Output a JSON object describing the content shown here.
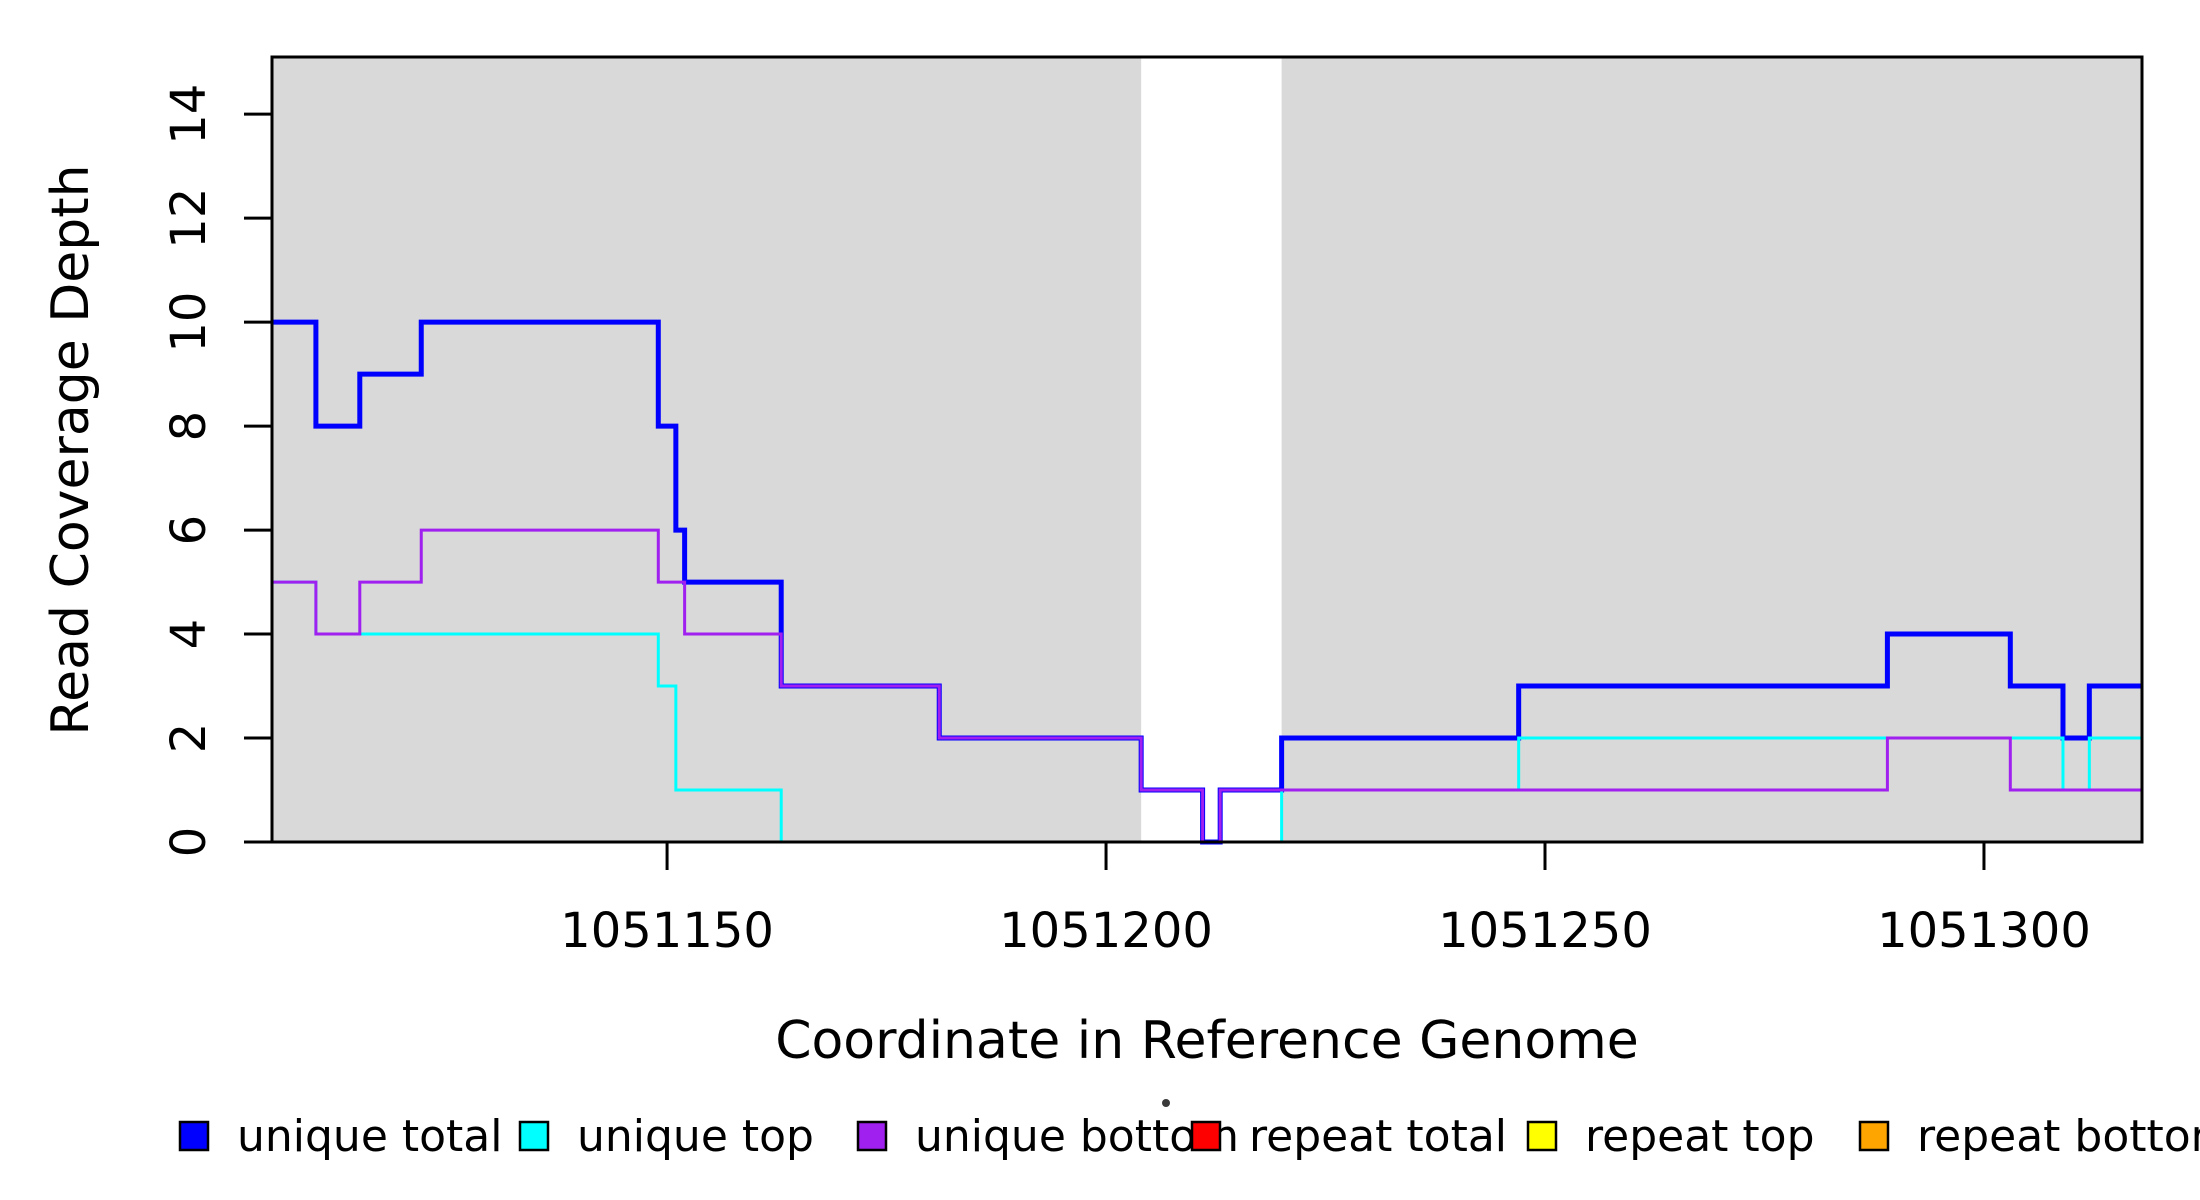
{
  "figure": {
    "background_color": "#ffffff",
    "plot_background_unique_color": "#d9d9d9",
    "box_color": "#000000"
  },
  "axes": {
    "x_title": "Coordinate in Reference Genome",
    "y_title": "Read Coverage Depth"
  },
  "chart_data": {
    "type": "line",
    "subtype": "step-after",
    "title": "",
    "xlabel": "Coordinate in Reference Genome",
    "ylabel": "Read Coverage Depth",
    "xlim": [
      1051105,
      1051318
    ],
    "ylim": [
      0,
      15.1
    ],
    "x_ticks": [
      1051150,
      1051200,
      1051250,
      1051300
    ],
    "y_ticks": [
      0,
      2,
      4,
      6,
      8,
      10,
      12,
      14
    ],
    "grid": false,
    "legend_position": "bottom",
    "background_regions": [
      {
        "label": "unique-region-left",
        "x1": 1051105,
        "x2": 1051204,
        "color": "#d9d9d9"
      },
      {
        "label": "unique-region-right",
        "x1": 1051220,
        "x2": 1051318,
        "color": "#d9d9d9"
      }
    ],
    "series": [
      {
        "name": "repeat total",
        "color": "#ff0000",
        "width": 3,
        "points": [
          [
            1051105,
            0
          ]
        ]
      },
      {
        "name": "repeat top",
        "color": "#ffff00",
        "width": 3,
        "points": [
          [
            1051105,
            0
          ]
        ]
      },
      {
        "name": "repeat bottom",
        "color": "#ffa500",
        "width": 3,
        "points": [
          [
            1051105,
            0
          ]
        ]
      },
      {
        "name": "unique total",
        "color": "#0000ff",
        "width": 5,
        "points": [
          [
            1051105,
            10
          ],
          [
            1051110,
            8
          ],
          [
            1051115,
            9
          ],
          [
            1051122,
            10
          ],
          [
            1051149,
            8
          ],
          [
            1051151,
            6
          ],
          [
            1051152,
            5
          ],
          [
            1051163,
            3
          ],
          [
            1051181,
            2
          ],
          [
            1051204,
            1
          ],
          [
            1051211,
            0
          ],
          [
            1051213,
            1
          ],
          [
            1051220,
            2
          ],
          [
            1051247,
            3
          ],
          [
            1051289,
            4
          ],
          [
            1051303,
            3
          ],
          [
            1051309,
            2
          ],
          [
            1051312,
            3
          ]
        ]
      },
      {
        "name": "unique top",
        "color": "#00ffff",
        "width": 3,
        "points": [
          [
            1051105,
            5
          ],
          [
            1051110,
            4
          ],
          [
            1051149,
            3
          ],
          [
            1051151,
            1
          ],
          [
            1051163,
            0
          ],
          [
            1051220,
            1
          ],
          [
            1051247,
            2
          ],
          [
            1051309,
            1
          ],
          [
            1051312,
            2
          ]
        ]
      },
      {
        "name": "unique bottom",
        "color": "#a020f0",
        "width": 3,
        "points": [
          [
            1051105,
            5
          ],
          [
            1051110,
            4
          ],
          [
            1051115,
            5
          ],
          [
            1051122,
            6
          ],
          [
            1051149,
            5
          ],
          [
            1051152,
            4
          ],
          [
            1051163,
            3
          ],
          [
            1051181,
            2
          ],
          [
            1051204,
            1
          ],
          [
            1051211,
            0
          ],
          [
            1051213,
            1
          ],
          [
            1051289,
            2
          ],
          [
            1051303,
            1
          ]
        ]
      }
    ],
    "legend": [
      {
        "label": "unique total",
        "color": "#0000ff"
      },
      {
        "label": "unique top",
        "color": "#00ffff"
      },
      {
        "label": "unique bottom",
        "color": "#a020f0"
      },
      {
        "label": "repeat total",
        "color": "#ff0000"
      },
      {
        "label": "repeat top",
        "color": "#ffff00"
      },
      {
        "label": "repeat bottom",
        "color": "#ffa500"
      }
    ],
    "stray_mark": {
      "description": "small dark dot between unique bottom and repeat total legend items"
    }
  }
}
